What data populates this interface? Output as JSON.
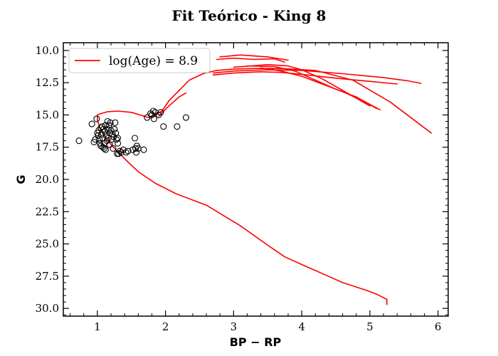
{
  "chart_data": {
    "type": "scatter",
    "title": "Fit Teórico - King 8",
    "xlabel": "BP − RP",
    "ylabel": "G",
    "xlim": [
      0.5,
      6.15
    ],
    "ylim": [
      30.6,
      9.4
    ],
    "y_inverted": true,
    "grid": false,
    "legend_position": "top-left",
    "xticks": [
      1,
      2,
      3,
      4,
      5,
      6
    ],
    "xtick_labels": [
      "1",
      "2",
      "3",
      "4",
      "5",
      "6"
    ],
    "yticks": [
      10.0,
      12.5,
      15.0,
      17.5,
      20.0,
      22.5,
      25.0,
      27.5,
      30.0
    ],
    "ytick_labels": [
      "10.0",
      "12.5",
      "15.0",
      "17.5",
      "20.0",
      "22.5",
      "25.0",
      "27.5",
      "30.0"
    ],
    "colors": {
      "isochrone": "#ff0000",
      "stars": "#000000"
    },
    "series": [
      {
        "name": "log(Age) = 8.9",
        "kind": "line",
        "color": "#ff0000",
        "x": [
          5.25,
          5.25,
          5.1,
          4.95,
          4.6,
          4.3,
          4.0,
          3.75,
          3.5,
          3.1,
          2.6,
          2.15,
          1.85,
          1.6,
          1.4,
          1.2,
          1.05,
          1.0,
          1.0,
          1.05,
          1.15,
          1.3,
          1.5,
          1.75,
          1.95,
          2.05,
          2.2,
          2.35,
          2.55,
          2.75,
          3.0,
          3.3,
          3.7,
          4.2,
          4.75,
          5.3,
          5.9
        ],
        "y": [
          29.7,
          29.3,
          28.9,
          28.6,
          28.0,
          27.3,
          26.6,
          26.0,
          25.1,
          23.6,
          22.0,
          21.1,
          20.3,
          19.4,
          18.4,
          17.3,
          16.2,
          15.4,
          15.0,
          14.9,
          14.75,
          14.7,
          14.8,
          15.2,
          14.7,
          13.9,
          13.1,
          12.3,
          11.8,
          11.55,
          11.45,
          11.4,
          11.4,
          11.55,
          12.3,
          14.0,
          16.4
        ]
      },
      {
        "name": "",
        "kind": "line",
        "color": "#ff0000",
        "x": [
          2.7,
          3.0,
          3.5,
          4.0,
          4.6,
          5.2,
          5.55,
          5.75
        ],
        "y": [
          11.75,
          11.6,
          11.5,
          11.55,
          11.8,
          12.1,
          12.35,
          12.55
        ]
      },
      {
        "name": "",
        "kind": "line",
        "color": "#ff0000",
        "x": [
          2.7,
          3.0,
          3.4,
          3.7,
          4.0,
          4.5,
          5.0,
          5.4
        ],
        "y": [
          11.9,
          11.75,
          11.65,
          11.7,
          11.85,
          12.15,
          12.4,
          12.6
        ]
      },
      {
        "name": "",
        "kind": "line",
        "color": "#ff0000",
        "x": [
          3.0,
          3.5,
          3.8,
          4.0,
          4.3,
          4.6,
          5.0
        ],
        "y": [
          11.3,
          11.1,
          11.2,
          11.5,
          12.2,
          13.1,
          14.3
        ]
      },
      {
        "name": "",
        "kind": "line",
        "color": "#ff0000",
        "x": [
          3.2,
          3.6,
          3.9,
          4.2,
          4.5,
          4.8,
          5.1
        ],
        "y": [
          11.2,
          11.25,
          11.6,
          12.3,
          13.0,
          13.6,
          14.5
        ]
      },
      {
        "name": "",
        "kind": "line",
        "color": "#ff0000",
        "x": [
          3.4,
          3.7,
          4.0,
          4.3,
          4.6,
          4.9,
          5.15
        ],
        "y": [
          11.35,
          11.6,
          12.0,
          12.6,
          13.2,
          13.9,
          14.6
        ]
      },
      {
        "name": "",
        "kind": "line",
        "color": "#ff0000",
        "x": [
          2.8,
          3.1,
          3.5,
          3.8
        ],
        "y": [
          10.5,
          10.35,
          10.5,
          10.75
        ]
      },
      {
        "name": "",
        "kind": "line",
        "color": "#ff0000",
        "x": [
          2.75,
          3.0,
          3.3,
          3.6,
          3.75
        ],
        "y": [
          10.7,
          10.6,
          10.7,
          10.65,
          10.9
        ]
      },
      {
        "name": "",
        "kind": "line",
        "color": "#ff0000",
        "x": [
          1.9,
          2.05,
          2.2,
          2.3
        ],
        "y": [
          15.1,
          14.3,
          13.6,
          13.3
        ]
      },
      {
        "name": "",
        "kind": "scatter",
        "color": "#000000",
        "x": [
          0.73,
          0.92,
          0.95,
          0.97,
          0.99,
          1.0,
          1.01,
          1.02,
          1.03,
          1.04,
          1.05,
          1.05,
          1.06,
          1.07,
          1.08,
          1.08,
          1.09,
          1.1,
          1.1,
          1.11,
          1.12,
          1.12,
          1.13,
          1.14,
          1.15,
          1.15,
          1.16,
          1.17,
          1.18,
          1.18,
          1.19,
          1.2,
          1.21,
          1.22,
          1.23,
          1.24,
          1.25,
          1.26,
          1.27,
          1.28,
          1.29,
          1.3,
          1.3,
          1.31,
          1.33,
          1.35,
          1.38,
          1.42,
          1.45,
          1.52,
          1.55,
          1.56,
          1.57,
          1.58,
          1.6,
          1.68,
          1.73,
          1.78,
          1.8,
          1.82,
          1.83,
          1.85,
          1.9,
          1.93,
          1.97,
          2.17,
          2.3
        ],
        "y": [
          17.0,
          15.7,
          17.1,
          16.9,
          15.3,
          16.4,
          16.6,
          16.2,
          16.9,
          17.2,
          16.0,
          17.4,
          16.5,
          15.9,
          17.5,
          16.8,
          16.1,
          17.6,
          17.2,
          16.3,
          15.8,
          17.7,
          16.6,
          17.0,
          15.5,
          16.1,
          16.8,
          15.8,
          16.4,
          17.3,
          15.6,
          16.2,
          16.9,
          16.5,
          17.6,
          16.7,
          16.1,
          15.6,
          16.4,
          16.9,
          18.0,
          17.2,
          16.8,
          18.0,
          17.8,
          17.9,
          17.7,
          17.9,
          17.8,
          17.7,
          16.8,
          17.6,
          17.9,
          17.4,
          17.6,
          17.7,
          15.2,
          14.9,
          15.0,
          14.7,
          15.3,
          14.8,
          15.0,
          14.8,
          15.9,
          15.9,
          15.2
        ]
      }
    ]
  }
}
